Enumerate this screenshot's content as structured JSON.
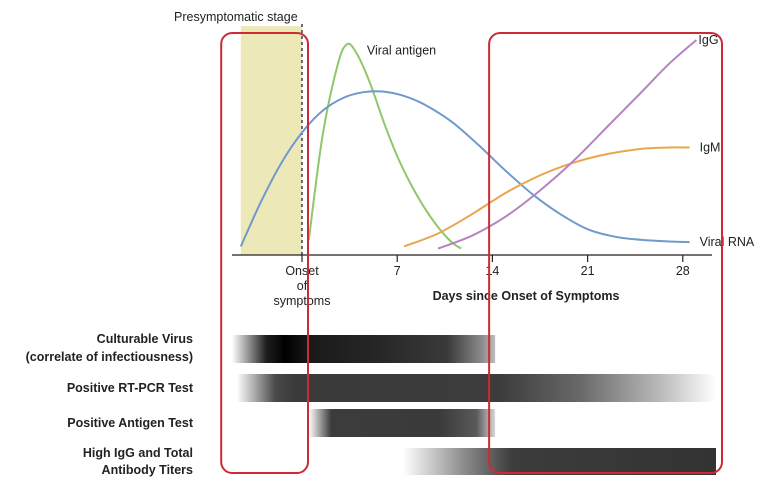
{
  "chart_data": {
    "type": "line",
    "title": "",
    "xlabel": "Days since Onset of Symptoms",
    "ylabel": "",
    "xlim": [
      -5,
      31
    ],
    "ylim": [
      0,
      1
    ],
    "x_ticks": [
      {
        "value": 0,
        "label": "Onset\nof\nsymptoms"
      },
      {
        "value": 7,
        "label": "7"
      },
      {
        "value": 14,
        "label": "14"
      },
      {
        "value": 21,
        "label": "21"
      },
      {
        "value": 28,
        "label": "28"
      }
    ],
    "presymptomatic_stage": {
      "label": "Presymptomatic stage",
      "from": -4.5,
      "to": 0,
      "color": "#ede8b8"
    },
    "onset_marker_x": 0,
    "series": [
      {
        "name": "Viral antigen",
        "color": "#8fc76a",
        "points": [
          [
            0.5,
            0.07
          ],
          [
            1.5,
            0.55
          ],
          [
            2.6,
            0.88
          ],
          [
            3.3,
            0.98
          ],
          [
            4.0,
            0.94
          ],
          [
            5.0,
            0.8
          ],
          [
            6.0,
            0.62
          ],
          [
            7.0,
            0.46
          ],
          [
            8.0,
            0.33
          ],
          [
            9.0,
            0.22
          ],
          [
            10.0,
            0.13
          ],
          [
            11.0,
            0.06
          ],
          [
            11.7,
            0.03
          ]
        ]
      },
      {
        "name": "Viral RNA",
        "color": "#6e9acc",
        "points": [
          [
            -4.5,
            0.04
          ],
          [
            -3,
            0.25
          ],
          [
            -1.5,
            0.43
          ],
          [
            0,
            0.57
          ],
          [
            1.5,
            0.67
          ],
          [
            3,
            0.73
          ],
          [
            4.5,
            0.757
          ],
          [
            6,
            0.76
          ],
          [
            7.5,
            0.74
          ],
          [
            9,
            0.7
          ],
          [
            11,
            0.62
          ],
          [
            13,
            0.51
          ],
          [
            15,
            0.39
          ],
          [
            17,
            0.28
          ],
          [
            19,
            0.19
          ],
          [
            21,
            0.12
          ],
          [
            23,
            0.085
          ],
          [
            25,
            0.07
          ],
          [
            27,
            0.063
          ],
          [
            28.5,
            0.06
          ]
        ]
      },
      {
        "name": "IgM",
        "color": "#e9a64c",
        "points": [
          [
            7.5,
            0.04
          ],
          [
            10,
            0.1
          ],
          [
            12.5,
            0.19
          ],
          [
            15,
            0.29
          ],
          [
            17.5,
            0.37
          ],
          [
            20,
            0.43
          ],
          [
            22.5,
            0.47
          ],
          [
            25,
            0.494
          ],
          [
            27,
            0.5
          ],
          [
            28.5,
            0.5
          ]
        ]
      },
      {
        "name": "IgG",
        "color": "#b583c2",
        "points": [
          [
            10,
            0.03
          ],
          [
            12.5,
            0.09
          ],
          [
            15,
            0.18
          ],
          [
            17.5,
            0.3
          ],
          [
            20,
            0.44
          ],
          [
            22.5,
            0.6
          ],
          [
            25,
            0.76
          ],
          [
            27,
            0.89
          ],
          [
            29,
            1.0
          ]
        ]
      }
    ],
    "bars": [
      {
        "label": [
          "Culturable Virus",
          "(correlate of infectiousness)"
        ],
        "x": [
          -5.5,
          14.2
        ]
      },
      {
        "label": [
          "Positive RT-PCR Test"
        ],
        "x": [
          -4.8,
          31
        ]
      },
      {
        "label": [
          "Positive Antigen Test"
        ],
        "x": [
          0.5,
          14.2
        ]
      },
      {
        "label": [
          "High IgG and Total",
          "Antibody Titers"
        ],
        "x": [
          7.4,
          31
        ]
      }
    ],
    "highlights": [
      {
        "color": "#cc2a36",
        "x_range": [
          -5.5,
          0
        ]
      },
      {
        "color": "#cc2a36",
        "x_range": [
          14.2,
          31
        ]
      }
    ]
  }
}
